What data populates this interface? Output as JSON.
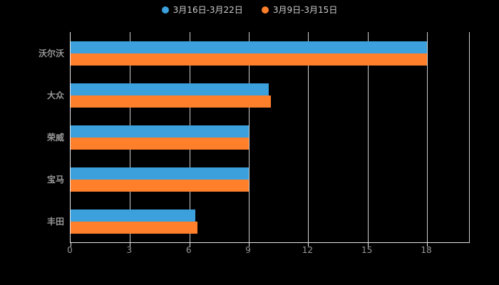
{
  "chart_data": {
    "type": "bar",
    "orientation": "horizontal",
    "title": "",
    "xlabel": "",
    "ylabel": "",
    "background": "#000000",
    "grid": true,
    "legend_position": "top-center",
    "categories": [
      "沃尔沃",
      "大众",
      "荣威",
      "宝马",
      "丰田"
    ],
    "series": [
      {
        "name": "3月16日-3月22日",
        "color": "#3BA0DC",
        "values": [
          18,
          10,
          9,
          9,
          6.3
        ]
      },
      {
        "name": "3月9日-3月15日",
        "color": "#FF7F2B",
        "values": [
          18,
          10.1,
          9,
          9,
          6.4
        ]
      }
    ],
    "xlim": [
      0,
      18
    ],
    "xticks": [
      0,
      3,
      6,
      9,
      12,
      15,
      18
    ]
  }
}
